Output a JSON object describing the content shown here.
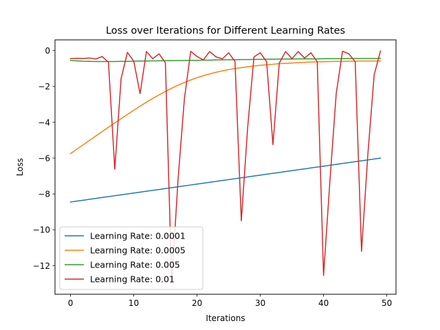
{
  "chart_data": {
    "type": "line",
    "title": "Loss over Iterations for Different Learning Rates",
    "xlabel": "Iterations",
    "ylabel": "Loss",
    "xlim": [
      -2.45,
      51.45
    ],
    "ylim": [
      -13.6,
      0.6
    ],
    "xticks": [
      0,
      10,
      20,
      30,
      40,
      50
    ],
    "yticks": [
      0,
      -2,
      -4,
      -6,
      -8,
      -10,
      -12
    ],
    "ytick_labels": [
      "0",
      "−2",
      "−4",
      "−6",
      "−8",
      "−10",
      "−12"
    ],
    "grid": false,
    "legend_position": "lower-left",
    "x": [
      0,
      1,
      2,
      3,
      4,
      5,
      6,
      7,
      8,
      9,
      10,
      11,
      12,
      13,
      14,
      15,
      16,
      17,
      18,
      19,
      20,
      21,
      22,
      23,
      24,
      25,
      26,
      27,
      28,
      29,
      30,
      31,
      32,
      33,
      34,
      35,
      36,
      37,
      38,
      39,
      40,
      41,
      42,
      43,
      44,
      45,
      46,
      47,
      48,
      49
    ],
    "series": [
      {
        "name": "Learning Rate: 0.0001",
        "color": "#1f77b4",
        "values": [
          -8.45,
          -8.4,
          -8.35,
          -8.3,
          -8.25,
          -8.2,
          -8.15,
          -8.1,
          -8.05,
          -8.0,
          -7.95,
          -7.9,
          -7.85,
          -7.8,
          -7.75,
          -7.7,
          -7.65,
          -7.6,
          -7.55,
          -7.5,
          -7.45,
          -7.4,
          -7.35,
          -7.3,
          -7.25,
          -7.2,
          -7.15,
          -7.1,
          -7.05,
          -7.0,
          -6.95,
          -6.9,
          -6.85,
          -6.8,
          -6.75,
          -6.7,
          -6.65,
          -6.6,
          -6.55,
          -6.5,
          -6.45,
          -6.4,
          -6.35,
          -6.3,
          -6.25,
          -6.2,
          -6.15,
          -6.1,
          -6.05,
          -6.0
        ]
      },
      {
        "name": "Learning Rate: 0.0005",
        "color": "#ff7f0e",
        "values": [
          -5.75,
          -5.5,
          -5.26,
          -5.01,
          -4.77,
          -4.52,
          -4.28,
          -4.04,
          -3.8,
          -3.56,
          -3.33,
          -3.1,
          -2.88,
          -2.67,
          -2.47,
          -2.28,
          -2.1,
          -1.93,
          -1.78,
          -1.64,
          -1.51,
          -1.4,
          -1.3,
          -1.21,
          -1.13,
          -1.06,
          -1.0,
          -0.95,
          -0.9,
          -0.86,
          -0.82,
          -0.79,
          -0.76,
          -0.73,
          -0.71,
          -0.69,
          -0.67,
          -0.65,
          -0.64,
          -0.63,
          -0.62,
          -0.61,
          -0.6,
          -0.6,
          -0.59,
          -0.59,
          -0.58,
          -0.58,
          -0.58,
          -0.58
        ]
      },
      {
        "name": "Learning Rate: 0.005",
        "color": "#2ca02c",
        "values": [
          -0.55,
          -0.57,
          -0.59,
          -0.6,
          -0.61,
          -0.61,
          -0.61,
          -0.61,
          -0.6,
          -0.6,
          -0.59,
          -0.58,
          -0.58,
          -0.57,
          -0.57,
          -0.56,
          -0.56,
          -0.55,
          -0.55,
          -0.54,
          -0.54,
          -0.53,
          -0.53,
          -0.52,
          -0.52,
          -0.51,
          -0.51,
          -0.5,
          -0.5,
          -0.49,
          -0.49,
          -0.48,
          -0.48,
          -0.47,
          -0.47,
          -0.47,
          -0.46,
          -0.46,
          -0.46,
          -0.46,
          -0.45,
          -0.45,
          -0.45,
          -0.45,
          -0.44,
          -0.44,
          -0.44,
          -0.44,
          -0.44,
          -0.43
        ]
      },
      {
        "name": "Learning Rate: 0.01",
        "color": "#d62728",
        "values": [
          -0.45,
          -0.43,
          -0.44,
          -0.41,
          -0.47,
          -0.33,
          -0.65,
          -6.62,
          -1.55,
          -0.1,
          -0.59,
          -2.4,
          -0.05,
          -0.45,
          -0.18,
          -0.68,
          -12.95,
          -7.2,
          -2.7,
          -0.04,
          -0.33,
          -0.52,
          -0.05,
          -0.35,
          -0.46,
          -0.12,
          -0.6,
          -9.5,
          -4.3,
          -0.35,
          -0.12,
          -0.62,
          -5.25,
          -0.7,
          -0.05,
          -0.45,
          -0.05,
          -0.42,
          -0.12,
          -0.62,
          -12.55,
          -7.3,
          -2.4,
          -0.03,
          -0.18,
          -0.62,
          -11.2,
          -5.8,
          -1.35,
          -0.02
        ]
      }
    ]
  }
}
